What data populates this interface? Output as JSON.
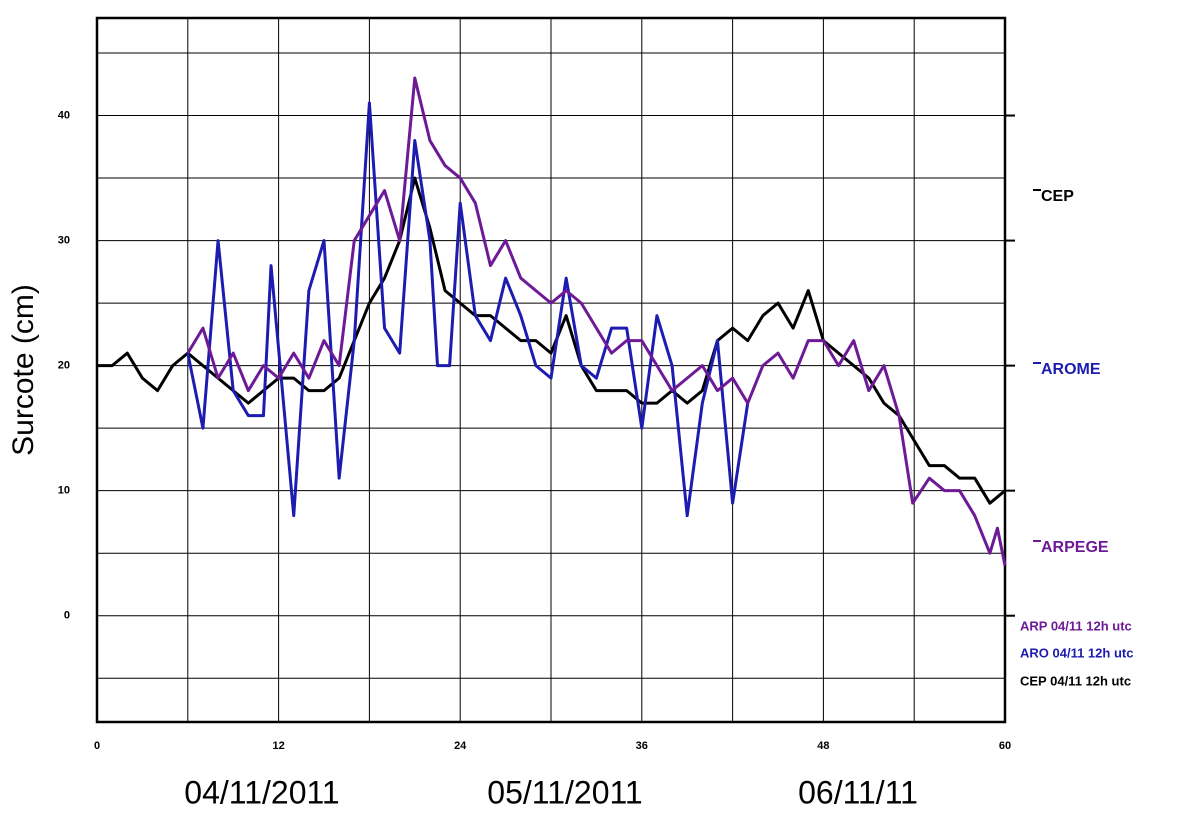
{
  "chart_data": {
    "type": "line",
    "y_label": "Surcote (cm)",
    "xlim": [
      0,
      60
    ],
    "ylim": [
      -8.5,
      47.8
    ],
    "xticks": [
      0,
      12,
      24,
      36,
      48,
      60
    ],
    "xminor": [
      6,
      18,
      30,
      42,
      54
    ],
    "yticks": [
      0,
      10,
      20,
      30,
      40
    ],
    "yminor": [
      -5,
      5,
      15,
      25,
      35,
      45
    ],
    "grid": true,
    "date_labels": [
      "04/11/2011",
      "05/11/2011",
      "06/11/11"
    ],
    "series": [
      {
        "name": "CEP",
        "run": "CEP 04/11 12h utc",
        "color": "#000000",
        "x": [
          0,
          1,
          2,
          3,
          4,
          5,
          6,
          7,
          8,
          9,
          10,
          11,
          12,
          13,
          14,
          15,
          16,
          17,
          18,
          19,
          20,
          21,
          22,
          23,
          24,
          25,
          26,
          27,
          28,
          29,
          30,
          31,
          32,
          33,
          34,
          35,
          36,
          37,
          38,
          39,
          40,
          41,
          42,
          43,
          44,
          45,
          46,
          47,
          48,
          49,
          50,
          51,
          52,
          53,
          54,
          55,
          56,
          57,
          58,
          59,
          60
        ],
        "values": [
          20,
          20,
          21,
          19,
          18,
          20,
          21,
          20,
          19,
          18,
          17,
          18,
          19,
          19,
          18,
          18,
          19,
          22,
          25,
          27,
          30,
          35,
          31,
          26,
          25,
          24,
          24,
          23,
          22,
          22,
          21,
          24,
          20,
          18,
          18,
          18,
          17,
          17,
          18,
          17,
          18,
          22,
          23,
          22,
          24,
          25,
          23,
          26,
          22,
          21,
          20,
          19,
          17,
          16,
          14,
          12,
          12,
          11,
          11,
          9,
          10
        ]
      },
      {
        "name": "AROME",
        "run": "ARO 04/11 12h utc",
        "color": "#1c1cb0",
        "x": [
          6,
          7,
          8,
          9,
          10,
          11,
          11.5,
          13,
          14,
          15,
          16,
          17,
          18,
          19,
          20,
          21,
          22,
          22.5,
          23.3,
          24,
          25,
          26,
          27,
          28,
          29,
          30,
          31,
          32,
          33,
          34,
          35,
          36,
          37,
          38,
          39,
          40,
          41,
          42,
          43
        ],
        "values": [
          21,
          15,
          30,
          18,
          16,
          16,
          28,
          8,
          26,
          30,
          11,
          22,
          41,
          23,
          21,
          38,
          30,
          20,
          20,
          33,
          24,
          22,
          27,
          24,
          20,
          19,
          27,
          20,
          19,
          23,
          23,
          15,
          24,
          20,
          8,
          17,
          22,
          9,
          17
        ]
      },
      {
        "name": "ARPEGE",
        "run": "ARP 04/11 12h utc",
        "color": "#6e1a96",
        "x": [
          6,
          7,
          8,
          9,
          10,
          11,
          12,
          13,
          14,
          15,
          16,
          17,
          18,
          19,
          20,
          21,
          22,
          23,
          24,
          25,
          26,
          27,
          28,
          29,
          30,
          31,
          32,
          33,
          34,
          35,
          36,
          37,
          38,
          39,
          40,
          41,
          42,
          43,
          44,
          45,
          46,
          47,
          48,
          49,
          50,
          51,
          52,
          53,
          53.9,
          55,
          56,
          57,
          58,
          59,
          59.5,
          60
        ],
        "values": [
          21,
          23,
          19,
          21,
          18,
          20,
          19,
          21,
          19,
          22,
          20,
          30,
          32,
          34,
          30,
          43,
          38,
          36,
          35,
          33,
          28,
          30,
          27,
          26,
          25,
          26,
          25,
          23,
          21,
          22,
          22,
          20,
          18,
          19,
          20,
          18,
          19,
          17,
          20,
          21,
          19,
          22,
          22,
          20,
          22,
          18,
          20,
          16,
          9,
          11,
          10,
          10,
          8,
          5,
          7,
          4
        ]
      }
    ]
  }
}
